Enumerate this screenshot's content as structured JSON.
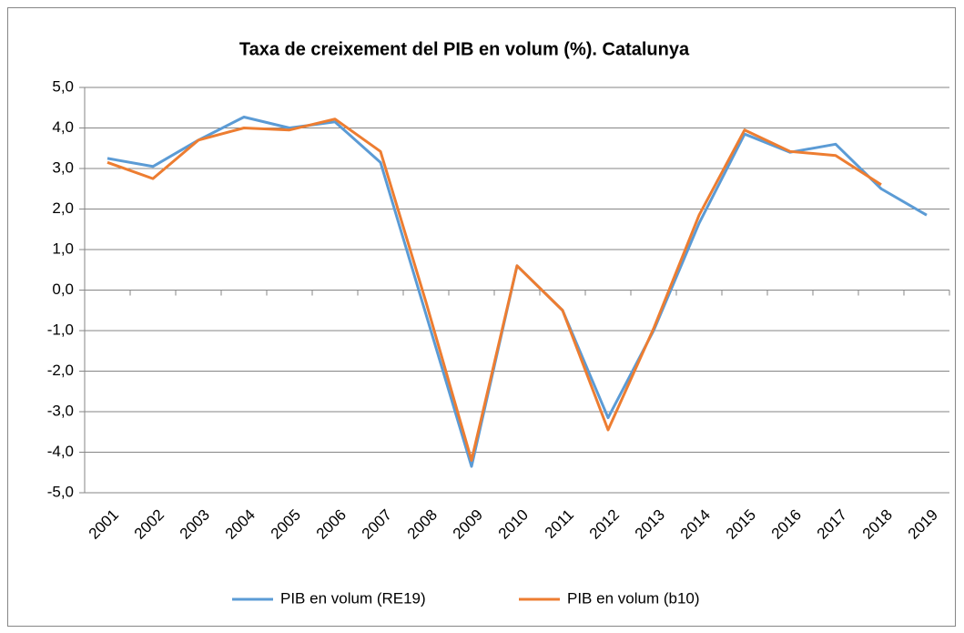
{
  "chart_data": {
    "type": "line",
    "title": "Taxa de creixement del PIB en volum (%). Catalunya",
    "categories": [
      "2001",
      "2002",
      "2003",
      "2004",
      "2005",
      "2006",
      "2007",
      "2008",
      "2009",
      "2010",
      "2011",
      "2012",
      "2013",
      "2014",
      "2015",
      "2016",
      "2017",
      "2018",
      "2019"
    ],
    "series": [
      {
        "name": "PIB en volum (RE19)",
        "color": "#5b9bd5",
        "values": [
          3.25,
          3.05,
          3.7,
          4.27,
          4.0,
          4.15,
          3.15,
          -0.6,
          -4.35,
          0.6,
          -0.5,
          -3.15,
          -1.0,
          1.65,
          3.85,
          3.4,
          3.6,
          2.5,
          1.85
        ]
      },
      {
        "name": "PIB en volum (b10)",
        "color": "#ed7d31",
        "values": [
          3.15,
          2.75,
          3.7,
          4.0,
          3.95,
          4.22,
          3.42,
          -0.3,
          -4.2,
          0.6,
          -0.5,
          -3.45,
          -0.95,
          1.85,
          3.95,
          3.42,
          3.32,
          2.6,
          null
        ]
      }
    ],
    "ylim": [
      -5,
      5
    ],
    "yticks": [
      {
        "value": -5,
        "label": "-5,0"
      },
      {
        "value": -4,
        "label": "-4,0"
      },
      {
        "value": -3,
        "label": "-3,0"
      },
      {
        "value": -2,
        "label": "-2,0"
      },
      {
        "value": -1,
        "label": "-1,0"
      },
      {
        "value": 0,
        "label": "0,0"
      },
      {
        "value": 1,
        "label": "1,0"
      },
      {
        "value": 2,
        "label": "2,0"
      },
      {
        "value": 3,
        "label": "3,0"
      },
      {
        "value": 4,
        "label": "4,0"
      },
      {
        "value": 5,
        "label": "5,0"
      }
    ],
    "grid": true,
    "legend": "bottom"
  }
}
